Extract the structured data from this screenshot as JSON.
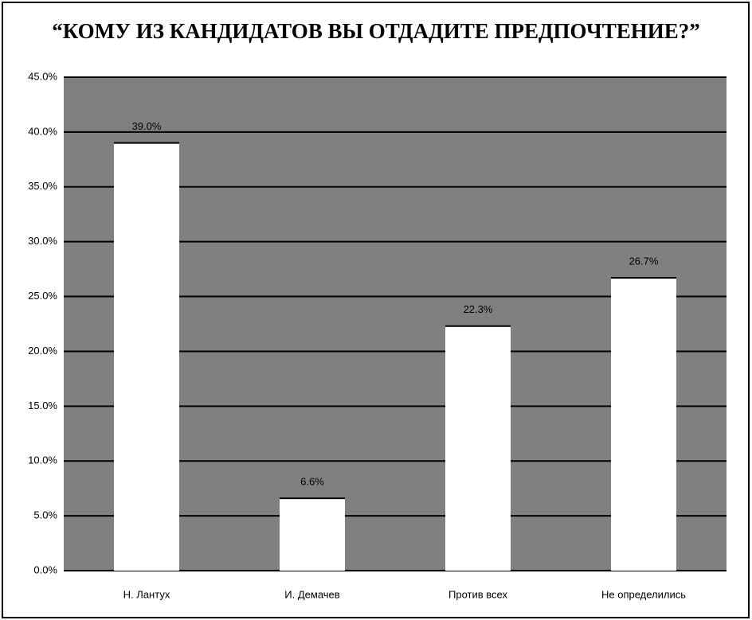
{
  "chart_data": {
    "type": "bar",
    "title": "“КОМУ ИЗ КАНДИДАТОВ ВЫ ОТДАДИТЕ ПРЕДПОЧТЕНИЕ?”",
    "categories": [
      "Н. Лантух",
      "И. Демачев",
      "Против всех",
      "Не определились"
    ],
    "values": [
      39.0,
      6.6,
      22.3,
      26.7
    ],
    "value_labels": [
      "39.0%",
      "6.6%",
      "22.3%",
      "26.7%"
    ],
    "color": "#ffffff",
    "ylim": [
      0,
      45
    ],
    "yticks": [
      {
        "value": 0,
        "label": "0.0%"
      },
      {
        "value": 5,
        "label": "5.0%"
      },
      {
        "value": 10,
        "label": "10.0%"
      },
      {
        "value": 15,
        "label": "15.0%"
      },
      {
        "value": 20,
        "label": "20.0%"
      },
      {
        "value": 25,
        "label": "25.0%"
      },
      {
        "value": 30,
        "label": "30.0%"
      },
      {
        "value": 35,
        "label": "35.0%"
      },
      {
        "value": 40,
        "label": "40.0%"
      },
      {
        "value": 45,
        "label": "45.0%"
      }
    ],
    "grid": true
  }
}
